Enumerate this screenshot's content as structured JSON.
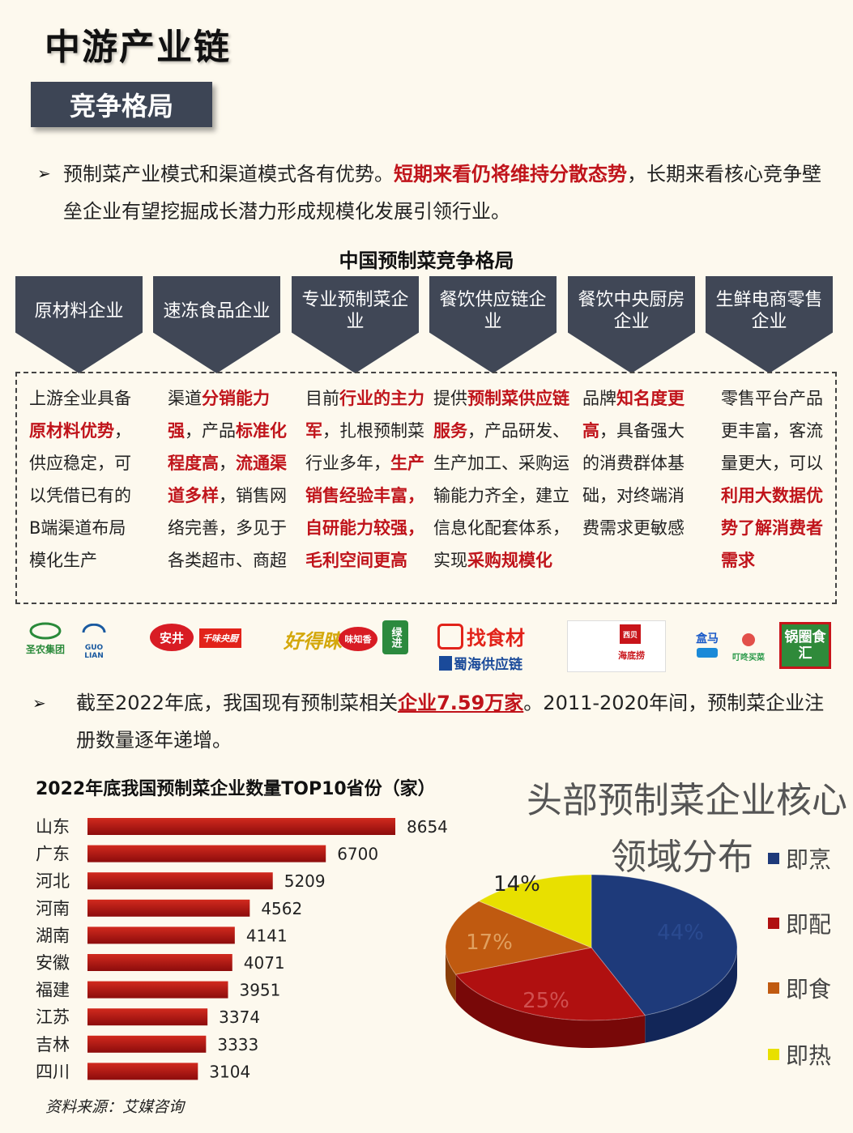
{
  "title": "中游产业链",
  "section": "竞争格局",
  "para1": {
    "a": "预制菜产业模式和渠道模式各有优势。",
    "b": "短期来看仍将维持分散态势",
    "c": "，长期来看核心竞争壁垒企业有望挖掘成长潜力形成规模化发展引领行业。"
  },
  "comp_title": "中国预制菜竞争格局",
  "categories": [
    {
      "name": "原材料企业"
    },
    {
      "name": "速冻食品企业"
    },
    {
      "name": "专业预制菜企业"
    },
    {
      "name": "餐饮供应链企业"
    },
    {
      "name": "餐饮中央厨房企业"
    },
    {
      "name": "生鲜电商零售企业"
    }
  ],
  "descriptions": [
    {
      "p1": "上游全业具备",
      "r1": "原材料优势",
      "p2": "，供应稳定，可以凭借已有的B端渠道布局模化生产",
      "r2": "",
      "p3": "",
      "r3": "",
      "p4": ""
    },
    {
      "p1": "渠道",
      "r1": "分销能力强",
      "p2": "，产品",
      "r2": "标准化程度高",
      "p3": "，",
      "r3": "流通渠道多样",
      "p4": "，销售网络完善，多见于各类超市、商超"
    },
    {
      "p1": "目前",
      "r1": "行业的主力军",
      "p2": "，扎根预制菜行业多年，",
      "r2": "生产销售经验丰富，自研能力较强，毛利空间更高",
      "p3": "",
      "r3": "",
      "p4": ""
    },
    {
      "p1": "提供",
      "r1": "预制菜供应链服务",
      "p2": "，产品研发、生产加工、采购运输能力齐全，建立信息化配套体系，实现",
      "r2": "采购规模化",
      "p3": "",
      "r3": "",
      "p4": ""
    },
    {
      "p1": "品牌",
      "r1": "知名度更高",
      "p2": "，具备强大的消费群体基础，对终端消费需求更敏感",
      "r2": "",
      "p3": "",
      "r3": "",
      "p4": ""
    },
    {
      "p1": "零售平台产品更丰富，客流量更大，可以",
      "r1": "利用大数据优势了解消费者需求",
      "p2": "",
      "r2": "",
      "p3": "",
      "r3": "",
      "p4": ""
    }
  ],
  "logos": {
    "l1": "圣农集团",
    "l2": "GUO LIAN",
    "l3": "安井",
    "l4": "千味央厨",
    "l5": "好得睐",
    "l6": "味知香",
    "l7": "绿进",
    "l8": "找食材",
    "l9": "蜀海供应链",
    "l10": "西贝",
    "l11": "海底捞",
    "l12": "盒马",
    "l13": "叮咚买菜",
    "l14": "锅圈食汇"
  },
  "para2": {
    "a": "截至2022年底，我国现有预制菜相关",
    "b": "企业7.59万家",
    "c": "。2011-2020年间，预制菜企业注册数量逐年递增。"
  },
  "colors": {
    "red": "#c0141b",
    "navy": "#404756",
    "blue": "#1e3a7a",
    "orange": "#c05a10",
    "yellow": "#e8e000"
  },
  "chart_data": [
    {
      "type": "bar",
      "orientation": "horizontal",
      "title": "2022年底我国预制菜企业数量TOP10省份（家）",
      "categories": [
        "山东",
        "广东",
        "河北",
        "河南",
        "湖南",
        "安徽",
        "福建",
        "江苏",
        "吉林",
        "四川"
      ],
      "values": [
        8654,
        6700,
        5209,
        4562,
        4141,
        4071,
        3951,
        3374,
        3333,
        3104
      ],
      "grid": false
    },
    {
      "type": "pie",
      "style": "3d",
      "title_line1": "头部预制菜企业核心",
      "title_line2": "领域分布",
      "labels": [
        "即烹",
        "即配",
        "即食",
        "即热"
      ],
      "values": [
        44,
        25,
        17,
        14
      ],
      "value_labels": [
        "44%",
        "25%",
        "17%",
        "14%"
      ],
      "colors": [
        "#1e3a7a",
        "#b01010",
        "#c05a10",
        "#e8e000"
      ],
      "legend": "right"
    }
  ],
  "source": "资料来源：艾媒咨询"
}
